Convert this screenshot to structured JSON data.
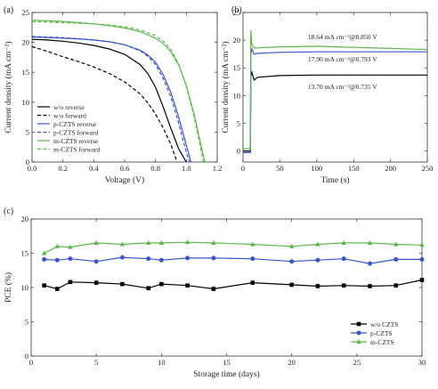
{
  "chart_data": [
    {
      "panel": "(a)",
      "type": "line",
      "xlabel": "Voltage (V)",
      "ylabel": "Current density (mA cm⁻²)",
      "xlim": [
        0.0,
        1.2
      ],
      "ylim": [
        0,
        25
      ],
      "xticks": [
        "0.0",
        "0.2",
        "0.4",
        "0.6",
        "0.8",
        "1.0",
        "1.2"
      ],
      "yticks": [
        "0",
        "5",
        "10",
        "15",
        "20",
        "25"
      ],
      "legend_position": "bottom-left",
      "series": [
        {
          "name": "w/o reverse",
          "color": "#000000",
          "dash": false,
          "x": [
            0.0,
            0.1,
            0.2,
            0.3,
            0.4,
            0.5,
            0.6,
            0.7,
            0.75,
            0.8,
            0.85,
            0.9,
            0.95,
            1.0
          ],
          "y": [
            20.5,
            20.4,
            20.2,
            19.9,
            19.5,
            18.9,
            18.0,
            16.3,
            14.8,
            12.5,
            9.2,
            5.6,
            2.2,
            0.0
          ]
        },
        {
          "name": "w/o forward",
          "color": "#000000",
          "dash": true,
          "x": [
            0.0,
            0.1,
            0.2,
            0.3,
            0.4,
            0.5,
            0.6,
            0.7,
            0.75,
            0.8,
            0.85,
            0.9,
            0.94
          ],
          "y": [
            19.3,
            18.5,
            17.6,
            16.8,
            15.9,
            14.8,
            13.4,
            11.4,
            9.9,
            8.0,
            5.7,
            2.9,
            0.0
          ]
        },
        {
          "name": "p-CZTS reverse",
          "color": "#3b55c8",
          "dash": false,
          "x": [
            0.0,
            0.1,
            0.2,
            0.3,
            0.4,
            0.5,
            0.6,
            0.7,
            0.75,
            0.8,
            0.85,
            0.9,
            0.95,
            1.0,
            1.03
          ],
          "y": [
            20.9,
            20.8,
            20.7,
            20.6,
            20.4,
            20.1,
            19.6,
            18.7,
            17.9,
            16.7,
            14.6,
            11.6,
            7.5,
            2.8,
            0.0
          ]
        },
        {
          "name": "p-CZTS forward",
          "color": "#3b55c8",
          "dash": true,
          "x": [
            0.0,
            0.1,
            0.2,
            0.3,
            0.4,
            0.5,
            0.6,
            0.7,
            0.75,
            0.8,
            0.85,
            0.9,
            0.95,
            1.0,
            1.02
          ],
          "y": [
            21.0,
            20.9,
            20.8,
            20.6,
            20.4,
            20.1,
            19.6,
            18.6,
            17.7,
            16.3,
            14.0,
            10.8,
            6.5,
            1.6,
            0.0
          ]
        },
        {
          "name": "m-CZTS reverse",
          "color": "#5cb84a",
          "dash": false,
          "x": [
            0.0,
            0.1,
            0.2,
            0.3,
            0.4,
            0.5,
            0.6,
            0.7,
            0.8,
            0.85,
            0.9,
            0.95,
            1.0,
            1.05,
            1.1,
            1.12
          ],
          "y": [
            23.7,
            23.6,
            23.5,
            23.3,
            23.1,
            22.8,
            22.4,
            21.8,
            20.7,
            19.8,
            18.4,
            16.2,
            12.8,
            8.0,
            2.2,
            0.0
          ]
        },
        {
          "name": "m-CZTS forward",
          "color": "#5cb84a",
          "dash": true,
          "x": [
            0.0,
            0.1,
            0.2,
            0.3,
            0.4,
            0.5,
            0.6,
            0.7,
            0.8,
            0.85,
            0.9,
            0.95,
            1.0,
            1.05,
            1.1,
            1.11
          ],
          "y": [
            23.5,
            23.4,
            23.3,
            23.2,
            23.1,
            22.9,
            22.6,
            22.1,
            21.1,
            20.2,
            18.8,
            16.4,
            12.6,
            7.6,
            1.4,
            0.0
          ]
        }
      ]
    },
    {
      "panel": "(b)",
      "type": "line",
      "xlabel": "Time (s)",
      "ylabel": "Current density (mA cm⁻²)",
      "xlim": [
        0,
        250
      ],
      "ylim": [
        -2,
        25
      ],
      "xticks": [
        "0",
        "50",
        "100",
        "150",
        "200",
        "250"
      ],
      "yticks": [
        "0",
        "5",
        "10",
        "15",
        "20",
        "25"
      ],
      "annotations": [
        {
          "text": "18.64 mA cm⁻²@0.850 V",
          "color": "#222222",
          "x": 135,
          "y": 20.2
        },
        {
          "text": "17.90 mA cm⁻²@0.793 V",
          "color": "#222222",
          "x": 135,
          "y": 16.2
        },
        {
          "text": "13.70 mA cm⁻²@0.735 V",
          "color": "#222222",
          "x": 135,
          "y": 11.2
        }
      ],
      "series": [
        {
          "name": "w/o",
          "color": "#000000",
          "x": [
            0,
            10,
            10.5,
            12,
            15,
            20,
            50,
            100,
            150,
            200,
            250
          ],
          "y": [
            0,
            0,
            13.5,
            14.2,
            12.8,
            13.3,
            13.6,
            13.7,
            13.7,
            13.7,
            13.7
          ]
        },
        {
          "name": "p-CZTS",
          "color": "#3b55c8",
          "x": [
            0,
            10,
            10.5,
            12,
            15,
            20,
            50,
            100,
            150,
            200,
            250
          ],
          "y": [
            -0.3,
            -0.3,
            17.4,
            18.4,
            17.5,
            17.6,
            17.8,
            17.9,
            17.9,
            17.9,
            17.9
          ]
        },
        {
          "name": "m-CZTS",
          "color": "#5cb84a",
          "x": [
            0,
            10,
            10.5,
            12,
            15,
            20,
            50,
            100,
            150,
            200,
            250
          ],
          "y": [
            0.4,
            0.4,
            21.8,
            19.2,
            18.6,
            18.6,
            18.8,
            18.9,
            18.7,
            18.5,
            18.3
          ]
        }
      ]
    },
    {
      "panel": "(c)",
      "type": "line",
      "xlabel": "Storage time (days)",
      "ylabel": "PCE (%)",
      "xlim": [
        0,
        30
      ],
      "ylim": [
        0,
        20
      ],
      "xticks": [
        "0",
        "5",
        "10",
        "15",
        "20",
        "25",
        "30"
      ],
      "yticks": [
        "0",
        "5",
        "10",
        "15",
        "20"
      ],
      "legend_position": "bottom-right",
      "series": [
        {
          "name": "w/o CZTS",
          "color": "#000000",
          "marker": "square",
          "x": [
            1,
            2,
            3,
            5,
            7,
            9,
            10,
            12,
            14,
            17,
            20,
            22,
            24,
            26,
            28,
            30
          ],
          "y": [
            10.3,
            9.8,
            10.8,
            10.7,
            10.5,
            9.9,
            10.5,
            10.3,
            9.8,
            10.7,
            10.4,
            10.2,
            10.3,
            10.2,
            10.3,
            11.1
          ]
        },
        {
          "name": "p-CZTS",
          "color": "#3b55c8",
          "marker": "circle",
          "x": [
            1,
            2,
            3,
            5,
            7,
            9,
            10,
            12,
            14,
            17,
            20,
            22,
            24,
            26,
            28,
            30
          ],
          "y": [
            14.1,
            14.0,
            14.2,
            13.8,
            14.4,
            14.2,
            14.0,
            14.3,
            14.3,
            14.2,
            13.8,
            14.0,
            14.2,
            13.5,
            14.1,
            14.1
          ]
        },
        {
          "name": "m-CZTS",
          "color": "#5cb84a",
          "marker": "triangle",
          "x": [
            1,
            2,
            3,
            5,
            7,
            9,
            10,
            12,
            14,
            17,
            20,
            22,
            24,
            26,
            28,
            30
          ],
          "y": [
            15.0,
            16.0,
            15.9,
            16.5,
            16.3,
            16.5,
            16.5,
            16.6,
            16.5,
            16.3,
            16.0,
            16.3,
            16.5,
            16.5,
            16.3,
            16.2
          ]
        }
      ]
    }
  ]
}
